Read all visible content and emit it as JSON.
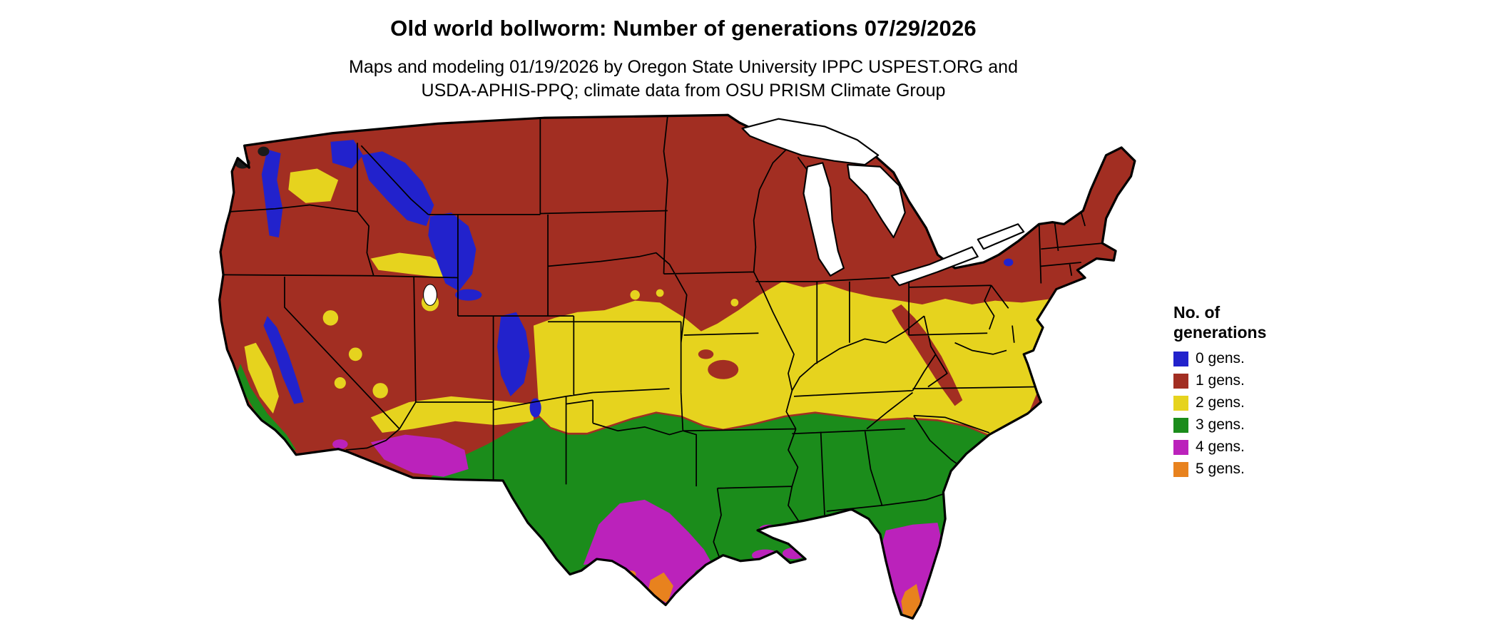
{
  "title": "Old world bollworm: Number of generations 07/29/2026",
  "subtitle": {
    "line1": "Maps and modeling 01/19/2026 by Oregon State University IPPC USPEST.ORG and",
    "line2": "USDA-APHIS-PPQ; climate data from OSU PRISM Climate Group"
  },
  "legend": {
    "title_line1": "No. of",
    "title_line2": "generations",
    "items": [
      {
        "label": "0 gens.",
        "color": "#2222CC"
      },
      {
        "label": "1 gens.",
        "color": "#A22E22"
      },
      {
        "label": "2 gens.",
        "color": "#E6D31E"
      },
      {
        "label": "3 gens.",
        "color": "#1B8C1B"
      },
      {
        "label": "4 gens.",
        "color": "#BB22BB"
      },
      {
        "label": "5 gens.",
        "color": "#E8821E"
      }
    ]
  },
  "map": {
    "description": "Continental United States choropleth of old world bollworm generation counts",
    "colors": {
      "background": "#FFFFFF",
      "water": "#FFFFFF",
      "state_border": "#000000",
      "outline": "#000000",
      "no_data_peak": "#1A1A1A"
    }
  }
}
